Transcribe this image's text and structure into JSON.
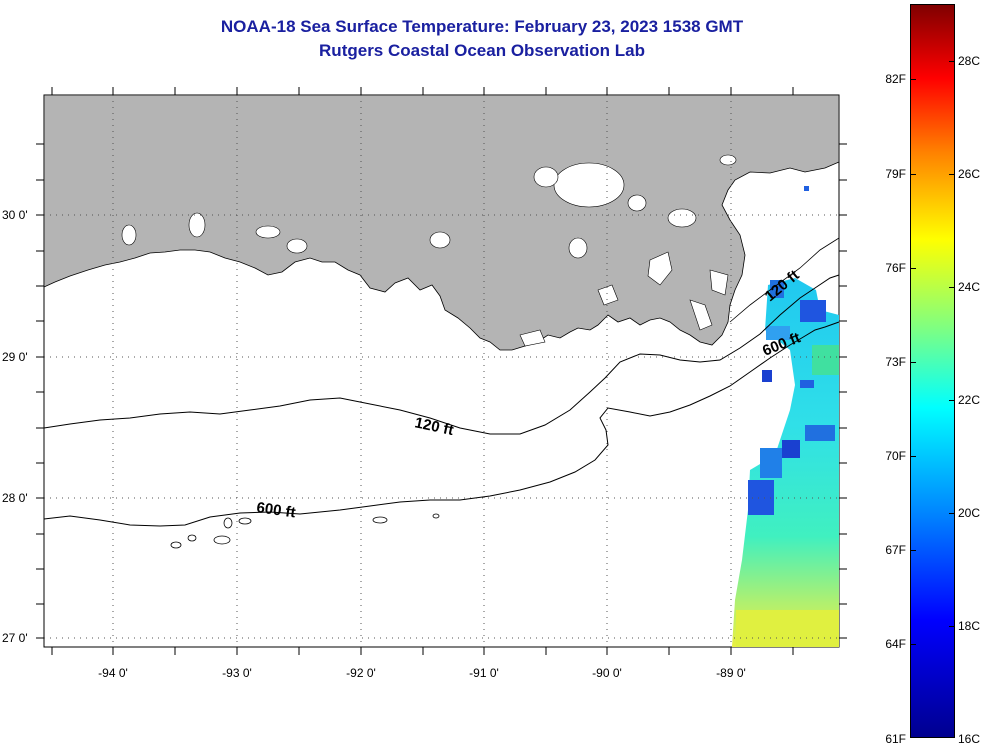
{
  "header": {
    "title": "NOAA-18 Sea Surface Temperature:  February 23, 2023 1538 GMT",
    "subtitle": "Rutgers Coastal Ocean Observation Lab"
  },
  "map": {
    "lat_labels": [
      "30 0'",
      "29 0'",
      "28 0'",
      "27 0'"
    ],
    "lon_labels": [
      "-94 0'",
      "-93 0'",
      "-92 0'",
      "-91 0'",
      "-90 0'",
      "-89 0'"
    ],
    "contour_labels": {
      "c120_west": "120 ft",
      "c600_west": "600 ft",
      "c120_east": "120 ft",
      "c600_east": "600 ft"
    },
    "land_color": "#b4b4b4",
    "grid": "dotted"
  },
  "colorbar": {
    "fahrenheit": [
      "82F",
      "79F",
      "76F",
      "73F",
      "70F",
      "67F",
      "64F",
      "61F"
    ],
    "celsius": [
      "28C",
      "26C",
      "24C",
      "22C",
      "20C",
      "18C",
      "16C"
    ],
    "range_c": [
      16,
      29.5
    ]
  }
}
